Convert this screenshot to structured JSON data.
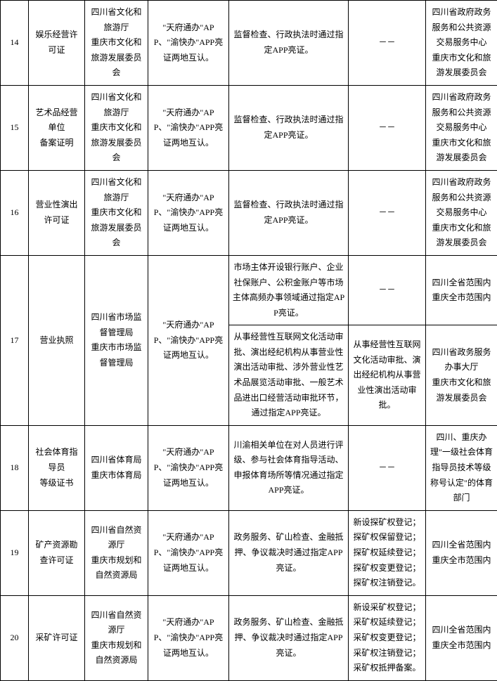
{
  "columns": {
    "widths": [
      40,
      80,
      90,
      115,
      170,
      110,
      102
    ]
  },
  "rows": [
    {
      "num": "14",
      "item": "娱乐经营许可证",
      "dept": "四川省文化和旅游厅\n重庆市文化和旅游发展委员会",
      "method": "\"天府通办\"APP、\"渝快办\"APP亮证两地互认。",
      "scenes": [
        {
          "text": "监督检查、行政执法时通过指定APP亮证。",
          "exclude": "－－",
          "region": "四川省政府政务服务和公共资源交易服务中心\n重庆市文化和旅游发展委员会"
        }
      ]
    },
    {
      "num": "15",
      "item": "艺术品经营单位\n备案证明",
      "dept": "四川省文化和旅游厅\n重庆市文化和旅游发展委员会",
      "method": "\"天府通办\"APP、\"渝快办\"APP亮证两地互认。",
      "scenes": [
        {
          "text": "监督检查、行政执法时通过指定APP亮证。",
          "exclude": "－－",
          "region": "四川省政府政务服务和公共资源交易服务中心\n重庆市文化和旅游发展委员会"
        }
      ]
    },
    {
      "num": "16",
      "item": "营业性演出\n许可证",
      "dept": "四川省文化和旅游厅\n重庆市文化和旅游发展委员会",
      "method": "\"天府通办\"APP、\"渝快办\"APP亮证两地互认。",
      "scenes": [
        {
          "text": "监督检查、行政执法时通过指定APP亮证。",
          "exclude": "－－",
          "region": "四川省政府政务服务和公共资源交易服务中心\n重庆市文化和旅游发展委员会"
        }
      ]
    },
    {
      "num": "17",
      "item": "营业执照",
      "dept": "四川省市场监督管理局\n重庆市市场监督管理局",
      "method": "\"天府通办\"APP、\"渝快办\"APP亮证两地互认。",
      "scenes": [
        {
          "text": "市场主体开设银行账户、企业社保账户、公积金账户等市场主体高频办事领域通过指定APP亮证。",
          "exclude": "－－",
          "region": "四川全省范围内\n重庆全市范围内"
        },
        {
          "text": "从事经营性互联网文化活动审批、演出经纪机构从事营业性演出活动审批、涉外营业性艺术品展览活动审批、一般艺术品进出口经营活动审批环节，通过指定APP亮证。",
          "exclude": "从事经营性互联网文化活动审批、演出经纪机构从事营业性演出活动审批。",
          "region": "四川省政务服务办事大厅\n重庆市文化和旅游发展委员会"
        }
      ]
    },
    {
      "num": "18",
      "item": "社会体育指导员\n等级证书",
      "dept": "四川省体育局\n重庆市体育局",
      "method": "\"天府通办\"APP、\"渝快办\"APP亮证两地互认。",
      "scenes": [
        {
          "text": "川渝相关单位在对人员进行评级、参与社会体育指导活动、申报体育场所等情况通过指定APP亮证。",
          "exclude": "－－",
          "region": "四川、重庆办理\"一级社会体育指导员技术等级称号认定\"的体育部门"
        }
      ]
    },
    {
      "num": "19",
      "item": "矿产资源勘查许可证",
      "dept": "四川省自然资源厅\n重庆市规划和自然资源局",
      "method": "\"天府通办\"APP、\"渝快办\"APP亮证两地互认。",
      "scenes": [
        {
          "text": "政务服务、矿山检查、金融抵押、争议裁决时通过指定APP亮证。",
          "exclude": "新设探矿权登记；探矿权保留登记；探矿权延续登记；探矿权变更登记；探矿权注销登记。",
          "region": "四川全省范围内\n重庆全市范围内"
        }
      ]
    },
    {
      "num": "20",
      "item": "采矿许可证",
      "dept": "四川省自然资源厅\n重庆市规划和自然资源局",
      "method": "\"天府通办\"APP、\"渝快办\"APP亮证两地互认。",
      "scenes": [
        {
          "text": "政务服务、矿山检查、金融抵押、争议裁决时通过指定APP亮证。",
          "exclude": "新设采矿权登记；采矿权延续登记；采矿权变更登记；采矿权注销登记；采矿权抵押备案。",
          "region": "四川全省范围内\n重庆全市范围内"
        }
      ]
    }
  ]
}
